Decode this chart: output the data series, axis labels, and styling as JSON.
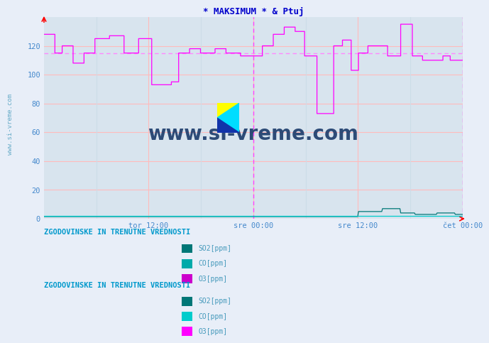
{
  "title": "* MAKSIMUM * & Ptuj",
  "bg_color": "#e8eef8",
  "plot_bg_color": "#d8e4ee",
  "title_color": "#0000cc",
  "grid_color_major": "#ffbbbb",
  "grid_color_minor": "#ccdde8",
  "ylim": [
    0,
    140
  ],
  "yticks": [
    0,
    20,
    40,
    60,
    80,
    100,
    120
  ],
  "ylabel_color": "#4488cc",
  "xtick_labels": [
    "tor 12:00",
    "sre 00:00",
    "sre 12:00",
    "čet 00:00"
  ],
  "vline_color": "#ff44ff",
  "hline_y": 115,
  "hline_color": "#ff88ff",
  "watermark_text": "www.si-vreme.com",
  "watermark_color": "#1a3a6a",
  "side_text": "www.si-vreme.com",
  "side_color": "#4499bb",
  "o3_color": "#ff00ff",
  "so2_color": "#007777",
  "co_color": "#00cccc",
  "arrow_color": "#cc0000",
  "legend_title_color": "#0099cc",
  "legend1_title": "ZGODOVINSKE IN TRENUTNE VREDNOSTI",
  "legend2_title": "ZGODOVINSKE IN TRENUTNE VREDNOSTI",
  "legend_text_color": "#4499bb",
  "legend1_items": [
    {
      "label": "SO2[ppm]",
      "color": "#007777"
    },
    {
      "label": "CO[ppm]",
      "color": "#00aaaa"
    },
    {
      "label": "O3[ppm]",
      "color": "#cc00cc"
    }
  ],
  "legend2_items": [
    {
      "label": "SO2[ppm]",
      "color": "#007777"
    },
    {
      "label": "CO[ppm]",
      "color": "#00cccc"
    },
    {
      "label": "O3[ppm]",
      "color": "#ff00ff"
    }
  ]
}
